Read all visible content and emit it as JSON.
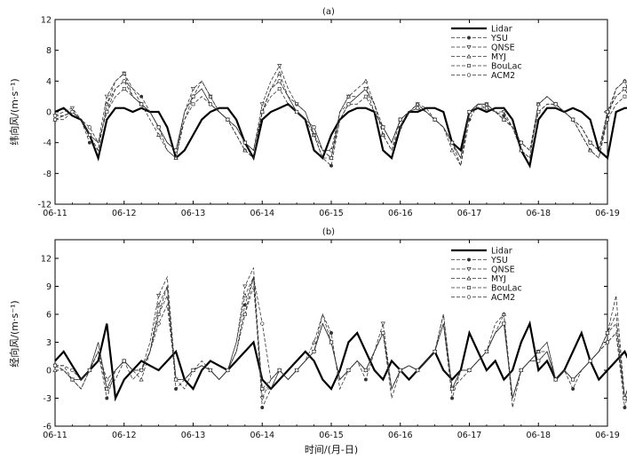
{
  "figure": {
    "x_axis_label": "时间/(月-日)"
  },
  "chart_data": [
    {
      "type": "line",
      "panel_label": "(a)",
      "ylabel": "纬向风/(m·s⁻¹)",
      "x_ticks": [
        "06-11",
        "06-12",
        "06-13",
        "06-14",
        "06-15",
        "06-16",
        "06-17",
        "06-18",
        "06-19"
      ],
      "xlim": [
        "06-11",
        "06-19"
      ],
      "ylim": [
        -12,
        12
      ],
      "y_ticks": [
        -12,
        -8,
        -4,
        0,
        4,
        8,
        12
      ],
      "grid": false,
      "legend_position": "top-right",
      "series_note": "values are sampled every 3 hours from 06-11 00:00",
      "series": [
        {
          "name": "Lidar",
          "style": "thick-solid",
          "marker": "none",
          "values": [
            0,
            0.5,
            -0.5,
            -1,
            -3,
            -6,
            -1,
            0.5,
            0.5,
            0,
            0.5,
            0,
            0,
            -2,
            -6,
            -5,
            -3,
            -1,
            0,
            0.5,
            0.5,
            -1,
            -4,
            -6,
            -1,
            0,
            0.5,
            1,
            0,
            -1,
            -5,
            -6,
            -3,
            -1,
            0,
            0.5,
            0.5,
            0,
            -5,
            -6,
            -2,
            0,
            0,
            0.5,
            0.5,
            0,
            -4,
            -5,
            0,
            0.5,
            0,
            0.5,
            0.5,
            -1,
            -5,
            -7,
            -1,
            0.5,
            0.5,
            0,
            0.5,
            0,
            -1,
            -5,
            -6,
            0,
            0.5,
            0.5,
            0,
            -8
          ]
        },
        {
          "name": "YSU",
          "style": "dashed",
          "marker": "circle",
          "values": [
            -1,
            -0.5,
            0,
            -1,
            -4,
            -5,
            1,
            3,
            4,
            3,
            2,
            0,
            -2,
            -5,
            -6,
            -1,
            2,
            3,
            1,
            0,
            -1,
            -3,
            -5,
            -6,
            0,
            3,
            4,
            2,
            1,
            0,
            -3,
            -6,
            -7,
            -1,
            1,
            2,
            3,
            1,
            -3,
            -5,
            -2,
            0,
            1,
            0.5,
            -1,
            -2,
            -4,
            -7,
            -1,
            1,
            1,
            0,
            -0.5,
            -2,
            -5,
            -6,
            1,
            2,
            1,
            0,
            -1,
            -3,
            -5,
            -6,
            -1,
            3,
            4,
            1,
            -2,
            -1
          ]
        },
        {
          "name": "QNSE",
          "style": "dashed",
          "marker": "triangle-down",
          "values": [
            -0.5,
            0,
            0.5,
            -1,
            -3,
            -4,
            2,
            4,
            5,
            3,
            1,
            0,
            -2,
            -4,
            -5,
            0,
            3,
            4,
            2,
            0,
            -1,
            -2,
            -4,
            -5,
            1,
            4,
            6,
            3,
            1,
            0,
            -3,
            -5,
            -6,
            0,
            2,
            2,
            3,
            1,
            -2,
            -4,
            -1,
            0,
            1,
            0,
            -1,
            -2,
            -4,
            -6,
            0,
            1,
            1,
            0,
            0,
            -2,
            -4,
            -5,
            1,
            2,
            1,
            0,
            -1,
            -2,
            -4,
            -5,
            0,
            2,
            3,
            1,
            -2,
            0
          ]
        },
        {
          "name": "MYJ",
          "style": "dashed",
          "marker": "triangle",
          "values": [
            -1,
            -1,
            0,
            -1,
            -3,
            -5,
            1,
            4,
            5,
            2,
            1,
            -1,
            -3,
            -5,
            -6,
            0,
            2,
            4,
            2,
            0,
            -1,
            -3,
            -5,
            -6,
            0,
            3,
            5,
            2,
            0,
            -1,
            -3,
            -6,
            -6,
            0,
            2,
            3,
            4,
            1,
            -3,
            -5,
            -1,
            0,
            1,
            0,
            -1,
            -2,
            -5,
            -7,
            0,
            1,
            1,
            0,
            -1,
            -2,
            -5,
            -6,
            1,
            2,
            1,
            0,
            -1,
            -3,
            -5,
            -6,
            0,
            3,
            4,
            1,
            -2,
            -1
          ]
        },
        {
          "name": "BouLac",
          "style": "dashed",
          "marker": "square",
          "values": [
            -1,
            -0.5,
            0,
            -1,
            -3,
            -4,
            0,
            2,
            3,
            2,
            1,
            0,
            -2,
            -4,
            -5,
            -1,
            1,
            2,
            1,
            0,
            -1,
            -2,
            -4,
            -5,
            0,
            2,
            3,
            1,
            0,
            -1,
            -2,
            -5,
            -6,
            -1,
            1,
            1,
            2,
            0,
            -2,
            -4,
            -1,
            0,
            0.5,
            0,
            -1,
            -2,
            -4,
            -6,
            0,
            0.5,
            0.5,
            0,
            -1,
            -2,
            -4,
            -5,
            0,
            1,
            1,
            0,
            -1,
            -2,
            -4,
            -5,
            -1,
            1,
            2,
            1,
            -1,
            -1
          ]
        },
        {
          "name": "ACM2",
          "style": "dashed",
          "marker": "circle-open",
          "values": [
            -0.5,
            -0.5,
            0,
            -1,
            -2,
            -4,
            0,
            3,
            4,
            2,
            1,
            0,
            -2,
            -4,
            -5,
            0,
            2,
            3,
            1,
            0,
            -1,
            -2,
            -4,
            -5,
            0,
            3,
            4,
            2,
            0,
            -1,
            -2,
            -5,
            -5,
            0,
            1,
            2,
            3,
            0,
            -2,
            -4,
            -1,
            0,
            0.5,
            0,
            -1,
            -2,
            -4,
            -6,
            0,
            1,
            0.5,
            0,
            -1,
            -2,
            -4,
            -5,
            0,
            1,
            1,
            0,
            -1,
            -2,
            -4,
            -5,
            0,
            2,
            3,
            1,
            -1,
            0
          ]
        }
      ]
    },
    {
      "type": "line",
      "panel_label": "(b)",
      "ylabel": "经向风/(m·s⁻¹)",
      "x_ticks": [
        "06-11",
        "06-12",
        "06-13",
        "06-14",
        "06-15",
        "06-16",
        "06-17",
        "06-18",
        "06-19"
      ],
      "xlim": [
        "06-11",
        "06-19"
      ],
      "ylim": [
        -6,
        14
      ],
      "y_ticks": [
        -6,
        -3,
        0,
        3,
        6,
        9,
        12
      ],
      "grid": false,
      "legend_position": "top-right",
      "series_note": "values are sampled every 3 hours from 06-11 00:00",
      "series": [
        {
          "name": "Lidar",
          "style": "thick-solid",
          "marker": "none",
          "values": [
            1,
            2,
            0.5,
            -1,
            0,
            1,
            5,
            -3,
            -1,
            0,
            1,
            0.5,
            0,
            1,
            2,
            -1,
            -2,
            0,
            1,
            0.5,
            0,
            1,
            2,
            3,
            -1,
            -2,
            -1,
            0,
            1,
            2,
            1,
            -1,
            -2,
            0,
            3,
            4,
            2,
            0,
            -1,
            1,
            0,
            -1,
            0,
            1,
            2,
            0,
            -1,
            0,
            4,
            2,
            0,
            1,
            -1,
            0,
            3,
            5,
            0,
            1,
            -1,
            0,
            2,
            4,
            1,
            -1,
            0,
            1,
            2,
            0,
            -1,
            1
          ]
        },
        {
          "name": "YSU",
          "style": "dashed",
          "marker": "circle",
          "values": [
            0.5,
            0,
            -1,
            -2,
            0,
            2,
            -3,
            0,
            1,
            -1,
            0,
            2,
            6,
            9,
            -2,
            -1,
            0,
            1,
            0,
            -1,
            0,
            2,
            7,
            10,
            -4,
            -2,
            0,
            -1,
            0,
            1,
            2,
            6,
            4,
            -2,
            0,
            1,
            -1,
            2,
            4,
            -3,
            0,
            0.5,
            0,
            1,
            2,
            5,
            -3,
            0,
            0,
            1,
            2,
            5,
            6,
            -4,
            0,
            1,
            2,
            3,
            -1,
            0,
            -2,
            0,
            1,
            2,
            3,
            4,
            -4,
            0,
            1,
            -1
          ]
        },
        {
          "name": "QNSE",
          "style": "dashed",
          "marker": "triangle-down",
          "values": [
            0.5,
            0.5,
            -1,
            -1,
            0,
            3,
            -2,
            0,
            1,
            0,
            0,
            3,
            8,
            10,
            -1,
            -1,
            0,
            0.5,
            0,
            -1,
            0,
            3,
            9,
            11,
            -3,
            -1,
            0,
            -1,
            0,
            1,
            2,
            5,
            3,
            -1,
            0,
            1,
            0,
            2,
            5,
            -2,
            0,
            0.5,
            0,
            1,
            2,
            6,
            -2,
            0,
            0,
            1,
            2,
            4,
            5,
            -3,
            0,
            1,
            2,
            2,
            -1,
            0,
            -1,
            0,
            1,
            2,
            4,
            5,
            -3,
            0,
            1,
            0
          ]
        },
        {
          "name": "MYJ",
          "style": "dashed",
          "marker": "triangle",
          "values": [
            0,
            0,
            -1,
            -2,
            0,
            2,
            -2,
            -1,
            1,
            0,
            -1,
            2,
            7,
            9,
            -1,
            -2,
            0,
            0.5,
            0,
            -1,
            0,
            3,
            8,
            10,
            -2,
            -2,
            0,
            -1,
            0,
            1,
            3,
            6,
            3,
            -1,
            0,
            1,
            0,
            2,
            4,
            -2,
            0,
            0.5,
            0,
            1,
            2,
            6,
            -2,
            -1,
            0,
            1,
            2,
            4,
            6,
            -3,
            0,
            1,
            2,
            3,
            -1,
            0,
            -1,
            0,
            1,
            2,
            4,
            6,
            -3,
            0,
            1,
            0
          ]
        },
        {
          "name": "BouLac",
          "style": "dashed",
          "marker": "square",
          "values": [
            0.5,
            0,
            -1,
            -1,
            0,
            3,
            -2,
            0,
            1,
            0,
            0,
            2,
            6,
            8,
            -1,
            -1,
            0,
            0.5,
            0,
            -1,
            0,
            2,
            6,
            9,
            -2,
            -1,
            0,
            -1,
            0,
            1,
            2,
            5,
            3,
            -1,
            0,
            1,
            0,
            2,
            4,
            -2,
            0,
            0.5,
            0,
            1,
            2,
            5,
            -2,
            0,
            0,
            1,
            2,
            4,
            5,
            -3,
            0,
            1,
            1,
            2,
            -1,
            0,
            -1,
            0,
            1,
            2,
            3,
            4,
            -3,
            0,
            1,
            0
          ]
        },
        {
          "name": "ACM2",
          "style": "dashed",
          "marker": "circle-open",
          "values": [
            0.5,
            0.5,
            0,
            -1,
            0,
            2,
            -1,
            0,
            1,
            0,
            0,
            2,
            5,
            7,
            -1,
            -1,
            0,
            0.5,
            0,
            -1,
            0,
            2,
            6,
            10,
            5,
            -1,
            0,
            -1,
            0,
            1,
            2,
            5,
            3,
            -1,
            0,
            1,
            0,
            2,
            4,
            -2,
            0,
            0.5,
            0,
            1,
            2,
            5,
            -2,
            0,
            0,
            1,
            2,
            4,
            5,
            -3,
            0,
            1,
            1,
            2,
            -1,
            0,
            -1,
            0,
            1,
            2,
            4,
            8,
            -3,
            0,
            1,
            0
          ]
        }
      ]
    }
  ]
}
